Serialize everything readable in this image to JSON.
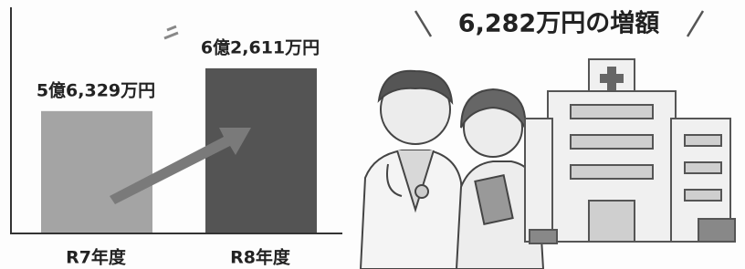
{
  "chart_data": {
    "type": "bar",
    "annotation": "6,282万円の増額",
    "categories": [
      "R7年度",
      "R8年度"
    ],
    "values": [
      56329,
      62611
    ],
    "value_labels": [
      "5億6,329万円",
      "6億2,611万円"
    ],
    "colors": [
      "#a4a4a4",
      "#545454"
    ],
    "ylim": [
      38500,
      71300
    ]
  }
}
